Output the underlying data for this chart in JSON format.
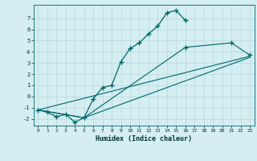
{
  "xlabel": "Humidex (Indice chaleur)",
  "background_color": "#d4eef2",
  "grid_color": "#b8d8dc",
  "line_color": "#006868",
  "xlim": [
    -0.5,
    23.5
  ],
  "ylim": [
    -2.6,
    8.2
  ],
  "yticks": [
    -2,
    -1,
    0,
    1,
    2,
    3,
    4,
    5,
    6,
    7
  ],
  "xticks": [
    0,
    1,
    2,
    3,
    4,
    5,
    6,
    7,
    8,
    9,
    10,
    11,
    12,
    13,
    14,
    15,
    16,
    17,
    18,
    19,
    20,
    21,
    22,
    23
  ],
  "curve_x": [
    0,
    1,
    2,
    3,
    4,
    5,
    6,
    7,
    8,
    9,
    10,
    11,
    12,
    13,
    14,
    15,
    16
  ],
  "curve_y": [
    -1.2,
    -1.4,
    -1.8,
    -1.6,
    -2.3,
    -1.9,
    -0.2,
    0.8,
    1.0,
    3.1,
    4.3,
    4.8,
    5.6,
    6.3,
    7.5,
    7.7,
    6.8
  ],
  "line1_x": [
    0,
    23
  ],
  "line1_y": [
    -1.2,
    3.6
  ],
  "line2_x": [
    0,
    5,
    23
  ],
  "line2_y": [
    -1.2,
    -1.9,
    3.5
  ],
  "line3_x": [
    0,
    5,
    16,
    21,
    23
  ],
  "line3_y": [
    -1.2,
    -1.9,
    4.4,
    4.8,
    3.7
  ],
  "marker_pts": {
    "x": [
      16,
      21,
      23
    ],
    "y": [
      4.4,
      4.8,
      3.7
    ]
  }
}
